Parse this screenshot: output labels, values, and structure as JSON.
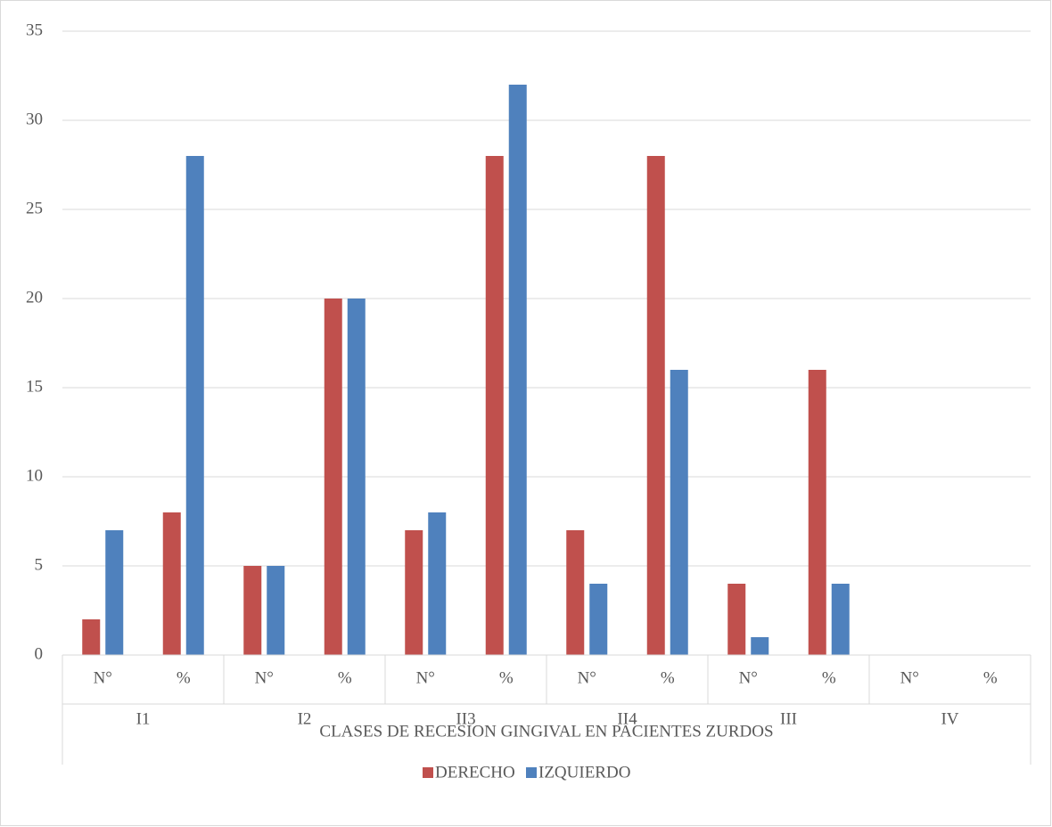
{
  "chart_data": {
    "type": "bar",
    "categories": [
      "N°",
      "%",
      "N°",
      "%",
      "N°",
      "%",
      "N°",
      "%",
      "N°",
      "%",
      "N°",
      "%"
    ],
    "groups": [
      "I1",
      "I2",
      "II3",
      "II4",
      "III",
      "IV"
    ],
    "x_label": "CLASES DE  RECESION GINGIVAL EN PACIENTES ZURDOS",
    "series": [
      {
        "name": "DERECHO",
        "color": "#c0504d",
        "values": [
          2,
          8,
          5,
          20,
          7,
          28,
          7,
          28,
          4,
          16,
          0,
          0
        ]
      },
      {
        "name": "IZQUIERDO",
        "color": "#4f81bd",
        "values": [
          7,
          28,
          5,
          20,
          8,
          32,
          4,
          16,
          1,
          4,
          0,
          0
        ]
      }
    ],
    "ylim": [
      0,
      35
    ],
    "yticks": [
      0,
      5,
      10,
      15,
      20,
      25,
      30,
      35
    ],
    "grid": true,
    "legend": "bottom"
  }
}
